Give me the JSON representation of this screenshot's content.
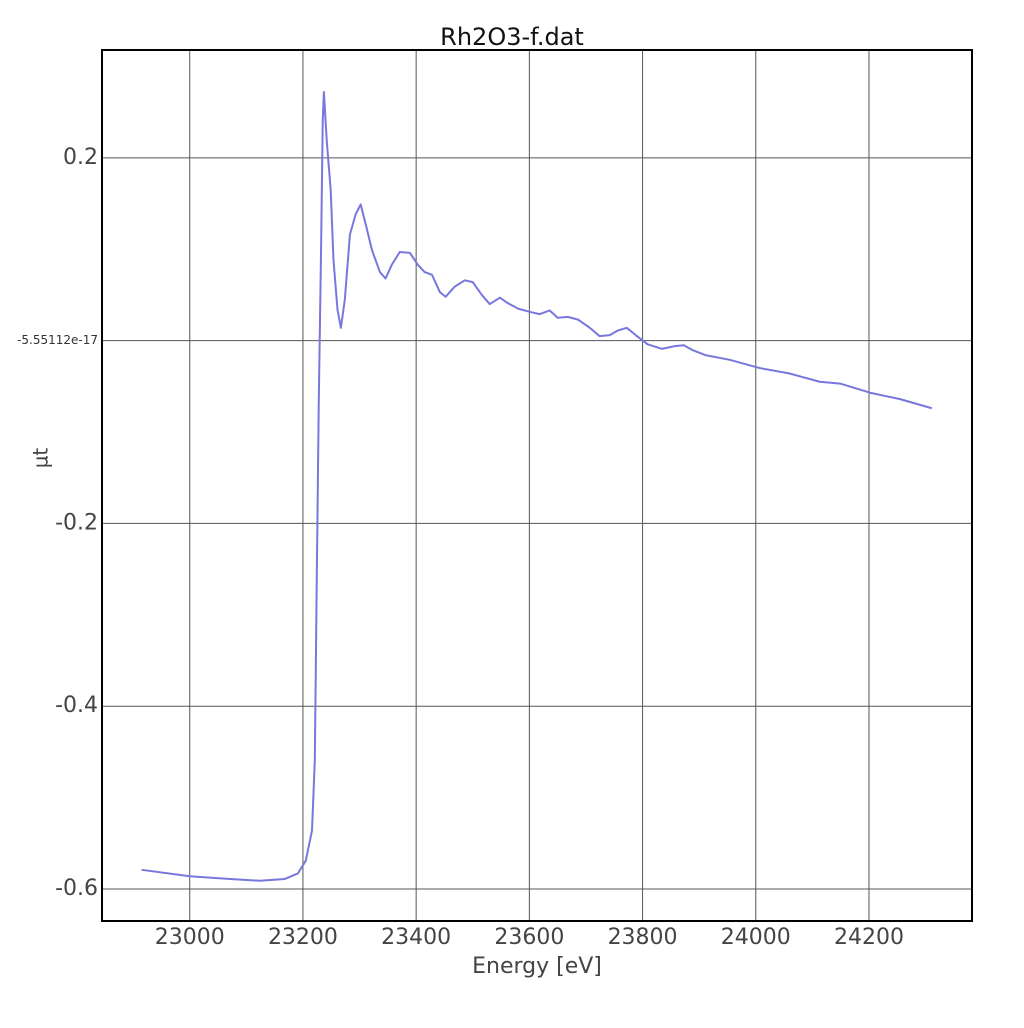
{
  "chart_data": {
    "type": "line",
    "title": "Rh2O3-f.dat",
    "x_label": "Energy [eV]",
    "y_label": "µt",
    "x": [
      22915,
      23000,
      23071,
      23124,
      23168,
      23191,
      23205,
      23216,
      23221,
      23224,
      23228,
      23232,
      23235,
      23237,
      23242,
      23249,
      23254,
      23261,
      23267,
      23274,
      23283,
      23293,
      23302,
      23311,
      23322,
      23336,
      23346,
      23357,
      23371,
      23389,
      23403,
      23415,
      23428,
      23442,
      23452,
      23468,
      23486,
      23500,
      23516,
      23530,
      23548,
      23562,
      23580,
      23604,
      23618,
      23636,
      23650,
      23668,
      23686,
      23707,
      23724,
      23742,
      23756,
      23772,
      23788,
      23809,
      23834,
      23857,
      23873,
      23887,
      23912,
      23954,
      24007,
      24060,
      24113,
      24149,
      24202,
      24255,
      24311
    ],
    "series": [
      {
        "name": "Rh2O3-f.dat",
        "color": "#7777dd",
        "values": [
          -0.579,
          -0.586,
          -0.589,
          -0.591,
          -0.589,
          -0.583,
          -0.569,
          -0.536,
          -0.459,
          -0.284,
          -0.065,
          0.099,
          0.241,
          0.272,
          0.219,
          0.165,
          0.088,
          0.034,
          0.014,
          0.045,
          0.116,
          0.138,
          0.149,
          0.127,
          0.099,
          0.075,
          0.068,
          0.083,
          0.097,
          0.096,
          0.083,
          0.075,
          0.072,
          0.053,
          0.048,
          0.059,
          0.066,
          0.064,
          0.05,
          0.04,
          0.047,
          0.041,
          0.035,
          0.031,
          0.029,
          0.033,
          0.025,
          0.026,
          0.023,
          0.014,
          0.005,
          0.006,
          0.011,
          0.014,
          0.006,
          -0.004,
          -0.009,
          -0.006,
          -0.005,
          -0.01,
          -0.016,
          -0.021,
          -0.03,
          -0.036,
          -0.045,
          -0.047,
          -0.057,
          -0.064,
          -0.074
        ]
      }
    ],
    "xlim": [
      22845,
      24382
    ],
    "ylim": [
      -0.635,
      0.318
    ],
    "xticks": [
      23000,
      23200,
      23400,
      23600,
      23800,
      24000,
      24200
    ],
    "yticks": [
      -0.6,
      -0.4,
      -0.2,
      -5.55112e-17,
      0.2
    ],
    "grid": true
  }
}
